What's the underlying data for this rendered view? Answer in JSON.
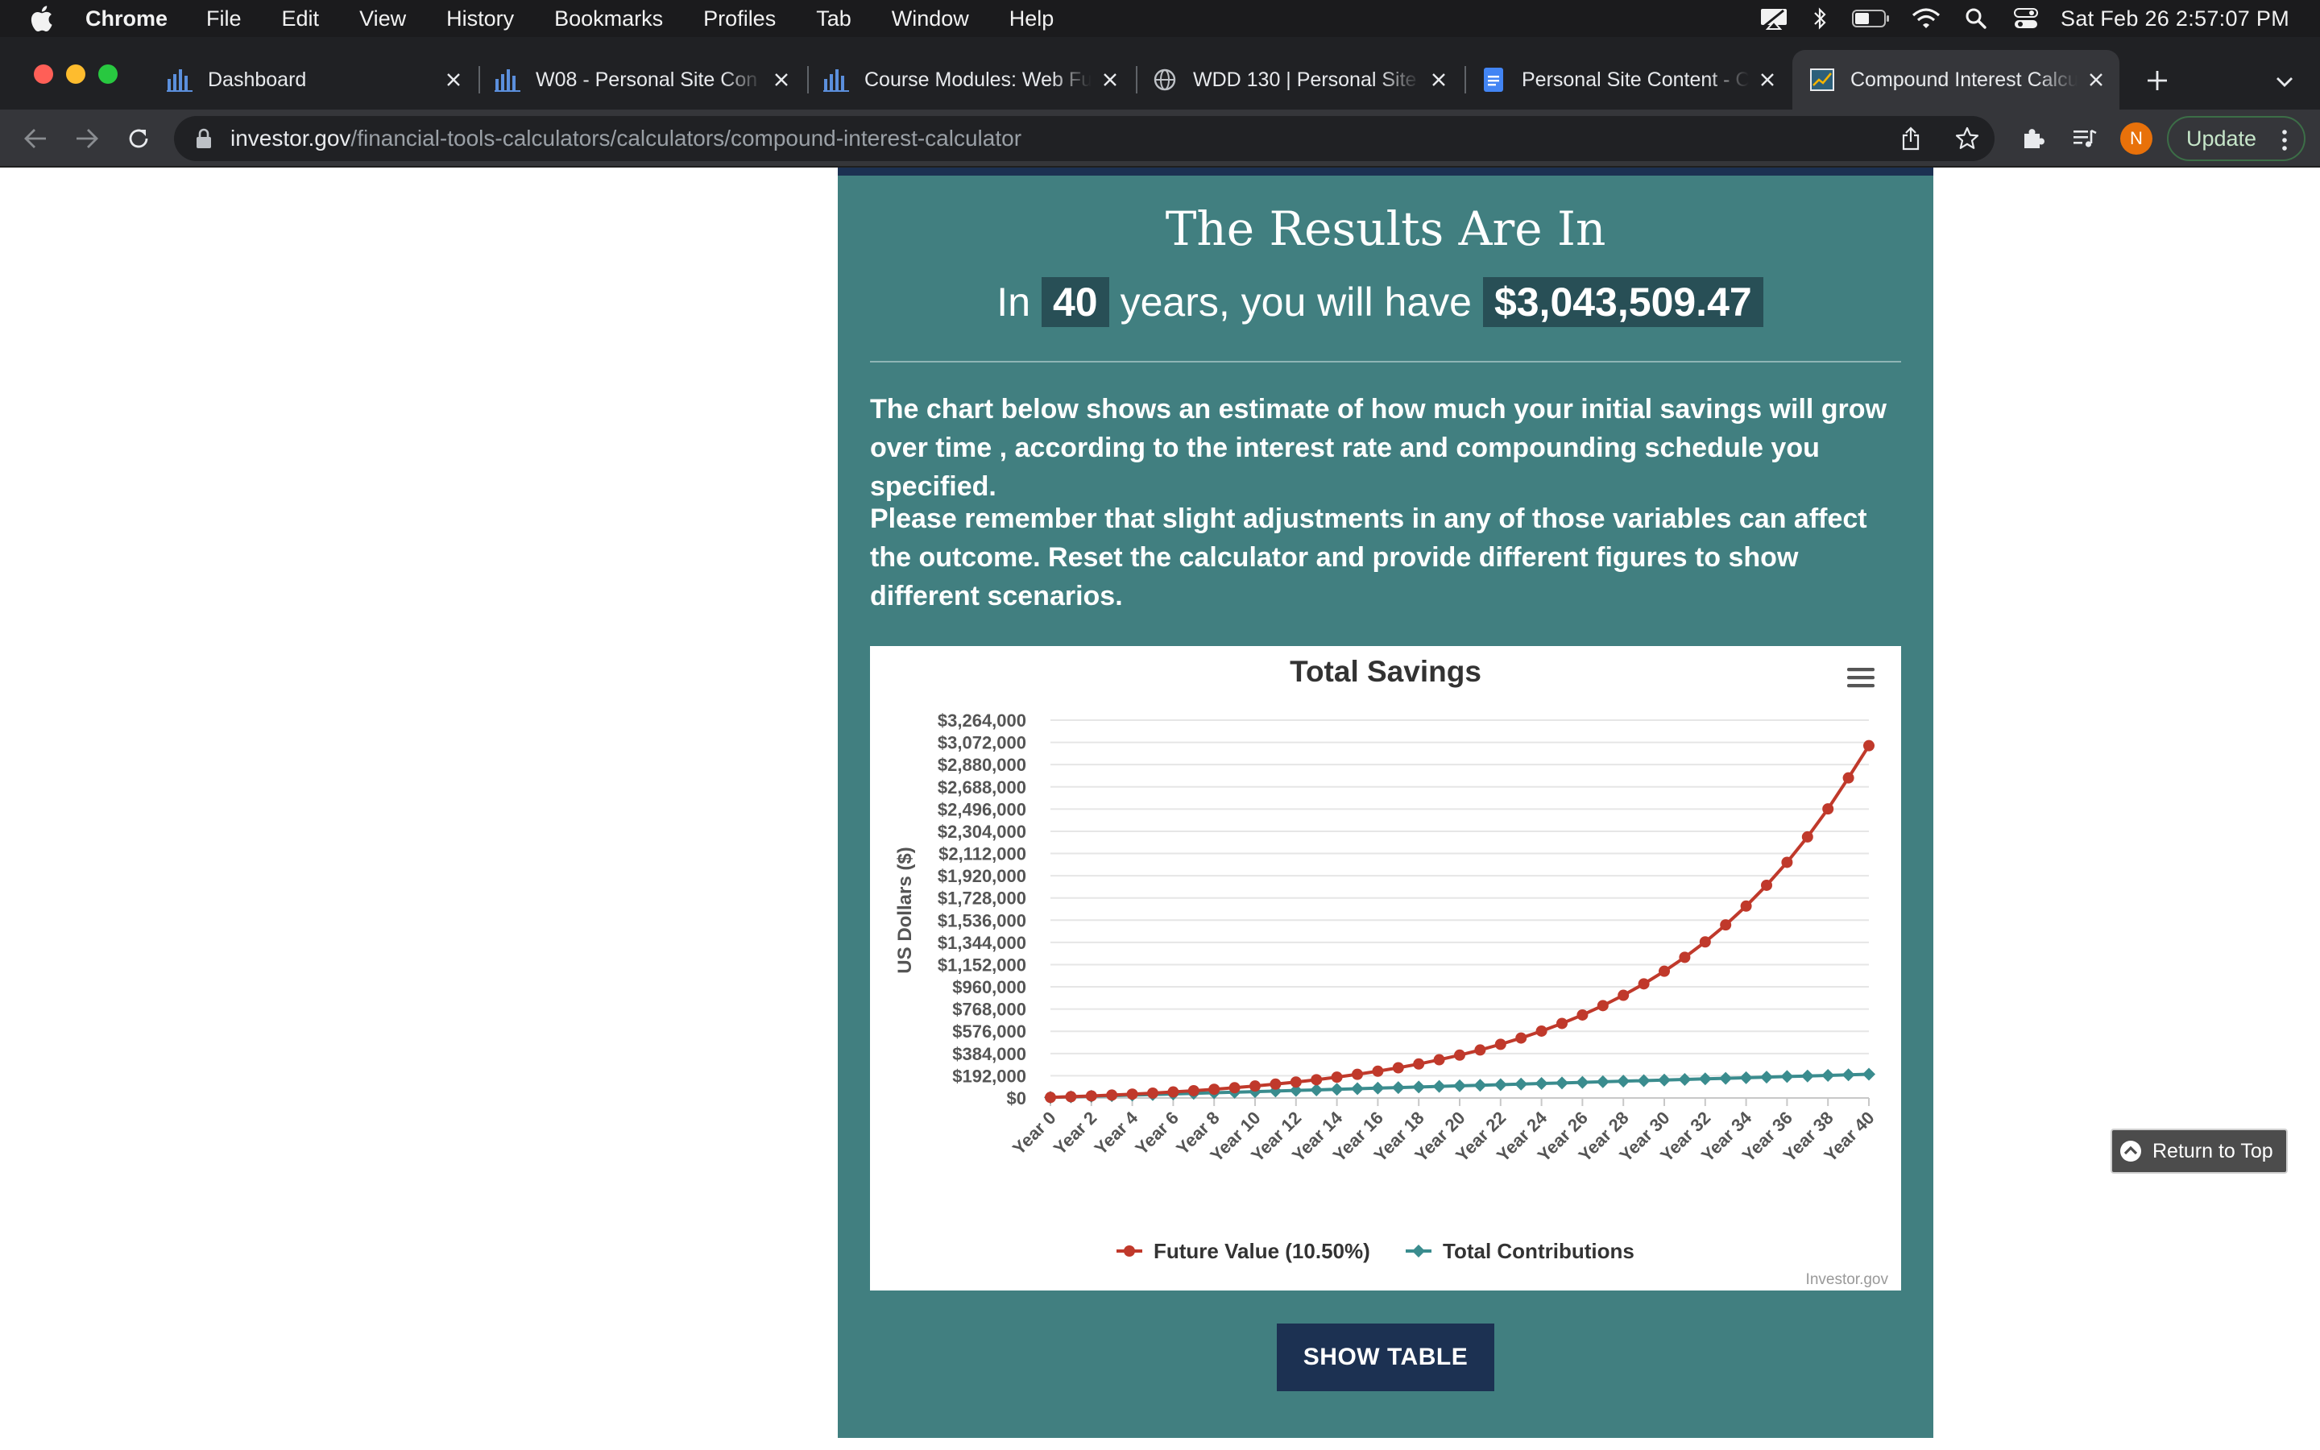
{
  "menubar": {
    "app_name": "Chrome",
    "menus": [
      "File",
      "Edit",
      "View",
      "History",
      "Bookmarks",
      "Profiles",
      "Tab",
      "Window",
      "Help"
    ],
    "clock": "Sat Feb 26  2:57:07 PM",
    "status_icons": [
      "screen-mirroring-icon",
      "bluetooth-icon",
      "battery-icon",
      "wifi-icon",
      "spotlight-search-icon",
      "control-center-icon"
    ]
  },
  "tabs": [
    {
      "label": "Dashboard",
      "icon": "canvas-icon",
      "active": false
    },
    {
      "label": "W08 - Personal Site Con",
      "icon": "canvas-icon",
      "active": false
    },
    {
      "label": "Course Modules: Web Fu",
      "icon": "canvas-icon",
      "active": false
    },
    {
      "label": "WDD 130 | Personal Site",
      "icon": "globe-icon",
      "active": false
    },
    {
      "label": "Personal Site Content - C",
      "icon": "google-docs-icon",
      "active": false
    },
    {
      "label": "Compound Interest Calcu",
      "icon": "chart-favicon-icon",
      "active": true
    }
  ],
  "toolbar": {
    "url_host": "investor.gov",
    "url_path": "/financial-tools-calculators/calculators/compound-interest-calculator",
    "profile_initial": "N",
    "update_label": "Update"
  },
  "results": {
    "title": "The Results Are In",
    "prefix": "In",
    "years": "40",
    "middle": "years, you will have",
    "amount": "$3,043,509.47"
  },
  "paragraphs": [
    "The chart below shows an estimate of how much your initial savings will grow over time , according to the interest rate and compounding schedule you specified.",
    "Please remember that slight adjustments in any of those variables can affect the outcome. Reset the calculator and provide different figures to show different scenarios."
  ],
  "chart_data": {
    "type": "line",
    "title": "Total Savings",
    "ylabel": "US Dollars ($)",
    "xlabel": "",
    "ylim": [
      0,
      3264000
    ],
    "y_ticks": [
      "$0",
      "$192,000",
      "$384,000",
      "$576,000",
      "$768,000",
      "$960,000",
      "$1,152,000",
      "$1,344,000",
      "$1,536,000",
      "$1,728,000",
      "$1,920,000",
      "$2,112,000",
      "$2,304,000",
      "$2,496,000",
      "$2,688,000",
      "$2,880,000",
      "$3,072,000",
      "$3,264,000"
    ],
    "y_tick_values": [
      0,
      192000,
      384000,
      576000,
      768000,
      960000,
      1152000,
      1344000,
      1536000,
      1728000,
      1920000,
      2112000,
      2304000,
      2496000,
      2688000,
      2880000,
      3072000,
      3264000
    ],
    "x_ticks": [
      "Year 0",
      "Year 2",
      "Year 4",
      "Year 6",
      "Year 8",
      "Year 10",
      "Year 12",
      "Year 14",
      "Year 16",
      "Year 18",
      "Year 20",
      "Year 22",
      "Year 24",
      "Year 26",
      "Year 28",
      "Year 30",
      "Year 32",
      "Year 34",
      "Year 36",
      "Year 38",
      "Year 40"
    ],
    "x": [
      0,
      1,
      2,
      3,
      4,
      5,
      6,
      7,
      8,
      9,
      10,
      11,
      12,
      13,
      14,
      15,
      16,
      17,
      18,
      19,
      20,
      21,
      22,
      23,
      24,
      25,
      26,
      27,
      28,
      29,
      30,
      31,
      32,
      33,
      34,
      35,
      36,
      37,
      38,
      39,
      40
    ],
    "series": [
      {
        "name": "Future Value (10.50%)",
        "color": "#c0392b",
        "marker": "circle",
        "values": [
          5000,
          11025,
          17683,
          25040,
          33169,
          42152,
          52078,
          63046,
          75166,
          88558,
          103356,
          119709,
          137778,
          157745,
          179809,
          204189,
          231129,
          260898,
          293793,
          330142,
          370307,
          414689,
          463732,
          517924,
          577807,
          643977,
          717094,
          797889,
          887168,
          985821,
          1094833,
          1215290,
          1348395,
          1495476,
          1658001,
          1837591,
          2036038,
          2255322,
          2497631,
          2765383,
          3043509
        ]
      },
      {
        "name": "Total Contributions",
        "color": "#3a8c8e",
        "marker": "diamond",
        "values": [
          5000,
          10000,
          15000,
          20000,
          25000,
          30000,
          35000,
          40000,
          45000,
          50000,
          55000,
          60000,
          65000,
          70000,
          75000,
          80000,
          85000,
          90000,
          95000,
          100000,
          105000,
          110000,
          115000,
          120000,
          125000,
          130000,
          135000,
          140000,
          145000,
          150000,
          155000,
          160000,
          165000,
          170000,
          175000,
          180000,
          185000,
          190000,
          195000,
          200000,
          205000
        ]
      }
    ],
    "credit": "Investor.gov",
    "grid": true,
    "legend_position": "bottom"
  },
  "buttons": {
    "show_table": "SHOW TABLE",
    "return_to_top": "Return to Top"
  }
}
